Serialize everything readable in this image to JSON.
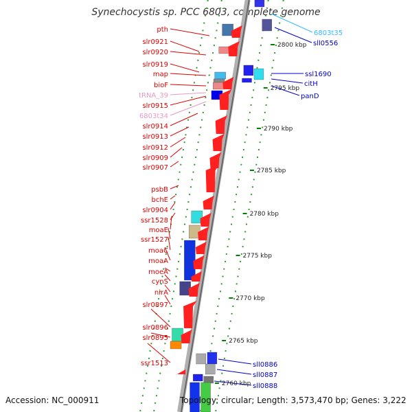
{
  "title": "Synechocystis sp. PCC 6803, complete genome",
  "footer": {
    "accession": "Accession: NC_000911",
    "info": "Topology: circular; Length: 3,573,470 bp; Genes: 3,222"
  },
  "colors": {
    "forward_gene": "#ff0000",
    "reverse_gene": "#0000ff",
    "trna_label": "#e0a0c0",
    "tick": "#008000",
    "backbone": "#888888",
    "cyan_label": "#33bbff"
  },
  "kbp_ticks": [
    "2800 kbp",
    "2795 kbp",
    "2790 kbp",
    "2785 kbp",
    "2780 kbp",
    "2775 kbp",
    "2770 kbp",
    "2765 kbp",
    "2760 kbp"
  ],
  "left_labels": [
    {
      "text": "pth",
      "color": "#dd0000"
    },
    {
      "text": "slr0921",
      "color": "#dd0000"
    },
    {
      "text": "slr0920",
      "color": "#dd0000"
    },
    {
      "text": "slr0919",
      "color": "#dd0000"
    },
    {
      "text": "map",
      "color": "#dd0000"
    },
    {
      "text": "bioF",
      "color": "#dd0000"
    },
    {
      "text": "tRNA_39",
      "color": "#e59ac4"
    },
    {
      "text": "slr0915",
      "color": "#dd0000"
    },
    {
      "text": "6803t34",
      "color": "#e59ac4"
    },
    {
      "text": "slr0914",
      "color": "#dd0000"
    },
    {
      "text": "slr0913",
      "color": "#dd0000"
    },
    {
      "text": "slr0912",
      "color": "#dd0000"
    },
    {
      "text": "slr0909",
      "color": "#dd0000"
    },
    {
      "text": "slr0907",
      "color": "#dd0000"
    },
    {
      "text": "psbB",
      "color": "#dd0000"
    },
    {
      "text": "bchE",
      "color": "#dd0000"
    },
    {
      "text": "slr0904",
      "color": "#dd0000"
    },
    {
      "text": "ssr1528",
      "color": "#dd0000"
    },
    {
      "text": "moaE",
      "color": "#dd0000"
    },
    {
      "text": "ssr1527",
      "color": "#dd0000"
    },
    {
      "text": "moaC",
      "color": "#dd0000"
    },
    {
      "text": "moaA",
      "color": "#dd0000"
    },
    {
      "text": "moeA",
      "color": "#dd0000"
    },
    {
      "text": "cynS",
      "color": "#dd0000"
    },
    {
      "text": "nirA",
      "color": "#dd0000"
    },
    {
      "text": "slr0897",
      "color": "#dd0000"
    },
    {
      "text": "slr0896",
      "color": "#dd0000"
    },
    {
      "text": "slr0895",
      "color": "#dd0000"
    },
    {
      "text": "ssr1513",
      "color": "#dd0000"
    }
  ],
  "right_labels": [
    {
      "text": "6803t35",
      "color": "#33bbff"
    },
    {
      "text": "sll0556",
      "color": "#0000cc"
    },
    {
      "text": "ssl1690",
      "color": "#0000cc"
    },
    {
      "text": "citH",
      "color": "#0000cc"
    },
    {
      "text": "panD",
      "color": "#0000cc"
    },
    {
      "text": "sll0886",
      "color": "#0000cc"
    },
    {
      "text": "sll0887",
      "color": "#0000cc"
    },
    {
      "text": "sll0888",
      "color": "#0000cc"
    }
  ]
}
